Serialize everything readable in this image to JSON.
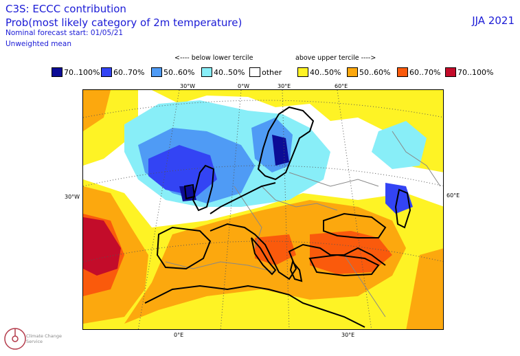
{
  "header": {
    "title": "C3S: ECCC contribution",
    "subtitle": "Prob(most likely category of 2m temperature)",
    "forecast_start": "Nominal forecast start: 01/05/21",
    "mean_type": "Unweighted mean",
    "season": "JJA 2021"
  },
  "legend": {
    "below_label": "<---- below lower tercile",
    "above_label": "above upper tercile ---->",
    "items": [
      {
        "label": "70..100%",
        "color": "#0c0c96"
      },
      {
        "label": "60..70%",
        "color": "#3344f4"
      },
      {
        "label": "50..60%",
        "color": "#4f9bf5"
      },
      {
        "label": "40..50%",
        "color": "#88eef8"
      },
      {
        "label": "other",
        "color": "#ffffff"
      },
      {
        "label": "40..50%",
        "color": "#fef325"
      },
      {
        "label": "50..60%",
        "color": "#fca80e"
      },
      {
        "label": "60..70%",
        "color": "#fa5a0c"
      },
      {
        "label": "70..100%",
        "color": "#c30c2a"
      }
    ]
  },
  "map": {
    "projection": "Lambert conformal (Europe)",
    "top_longitude_labels": [
      "30°W",
      "0°W",
      "30°E",
      "60°E"
    ],
    "bottom_longitude_labels": [
      "0°E",
      "30°E"
    ],
    "left_latitude_label": "30°W",
    "right_latitude_label": "60°E"
  },
  "logo": {
    "text": "Climate Change Service"
  }
}
